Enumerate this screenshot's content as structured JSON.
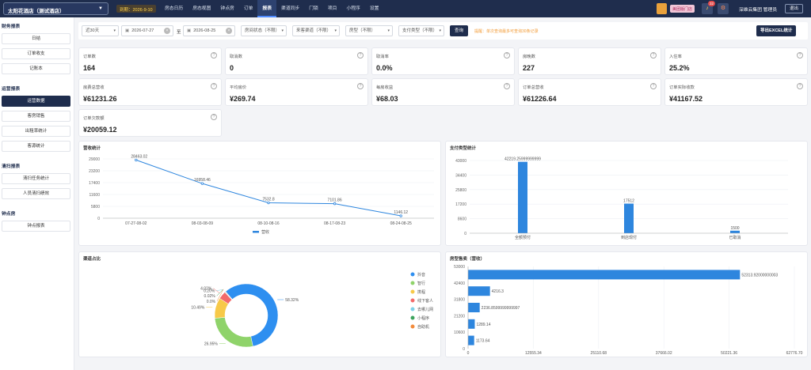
{
  "header": {
    "store": "太阳花酒店（测试酒店）",
    "expire": "到期：2026-9-10",
    "nav": [
      "房态日历",
      "房态视图",
      "钟点房",
      "订单",
      "报表",
      "渠道同步",
      "门锁",
      "项目",
      "小程序",
      "设置"
    ],
    "active_nav": "报表",
    "version": "美团版门店",
    "notice_count": "32",
    "user": "深维云集团 管理员",
    "logout": "退出"
  },
  "sidebar": {
    "groups": [
      {
        "title": "财务报表",
        "items": [
          "日结",
          "订单收支",
          "记账本"
        ]
      },
      {
        "title": "运营报表",
        "items": [
          "运营数据",
          "客房销售",
          "出租率统计",
          "客源统计"
        ]
      },
      {
        "title": "清扫报表",
        "items": [
          "清扫任务统计",
          "人员清扫绩效"
        ]
      },
      {
        "title": "钟点房",
        "items": [
          "钟点报表"
        ]
      }
    ],
    "active": "运营数据"
  },
  "filter": {
    "period": "近30天",
    "start_date": "2026-07-27",
    "sep": "至",
    "end_date": "2026-08-25",
    "order_status": "房间状态（不限）",
    "channel": "来客渠道（不限）",
    "room_type": "房型（不限）",
    "pay_type": "支付类型（不限）",
    "query": "查询",
    "hint": "提醒：单次查询最多可查询30条记录",
    "export": "导出EXCEL统计"
  },
  "kpis": [
    {
      "label": "订单数",
      "value": "164"
    },
    {
      "label": "取消数",
      "value": "0"
    },
    {
      "label": "取消率",
      "value": "0.0%"
    },
    {
      "label": "房晚数",
      "value": "227"
    },
    {
      "label": "入住率",
      "value": "25.2%"
    },
    {
      "label": "房费总营收",
      "value": "¥61231.26"
    },
    {
      "label": "平均房价",
      "value": "¥269.74"
    },
    {
      "label": "每房收益",
      "value": "¥68.03"
    },
    {
      "label": "订单总营收",
      "value": "¥61226.64"
    },
    {
      "label": "订单实际收款",
      "value": "¥41167.52"
    },
    {
      "label": "订单欠款额",
      "value": "¥20059.12"
    }
  ],
  "chart_data": [
    {
      "type": "line",
      "title": "营收统计",
      "categories": [
        "07-27-08-02",
        "08-03-08-09",
        "08-10-08-16",
        "08-17-08-23",
        "08-24-08-25"
      ],
      "series": [
        {
          "name": "营收",
          "values": [
            28463.02,
            16958.46,
            7532.8,
            7101.86,
            1146.12
          ]
        }
      ],
      "value_labels": [
        "28463.02",
        "16958.46",
        "7532.8",
        "7101.86",
        "1146.12"
      ],
      "yticks": [
        "29000",
        "23200",
        "17400",
        "11600",
        "5800",
        "0"
      ],
      "ylim": [
        0,
        29000
      ],
      "color": "#2e86de",
      "legend": "bottom"
    },
    {
      "type": "bar",
      "title": "支付类型统计",
      "categories": [
        "全额预付",
        "到店现付",
        "已取消"
      ],
      "values": [
        42219.25999999999,
        17512,
        1500
      ],
      "value_labels": [
        "42219.25999999999",
        "17512",
        "1500"
      ],
      "yticks": [
        "43000",
        "34400",
        "25800",
        "17200",
        "8600",
        "0"
      ],
      "ylim": [
        0,
        43000
      ],
      "color": "#2e86de"
    },
    {
      "type": "pie",
      "title": "渠道占比",
      "labels": [
        "抖音",
        "智行",
        "携程",
        "线下客人",
        "去哪儿网",
        "小程序",
        "自助机"
      ],
      "values": [
        58.32,
        26.95,
        10.49,
        4.02,
        0.2,
        0.02,
        0.0
      ],
      "label_texts": [
        "58.32%",
        "26.95%",
        "10.49%",
        "4.02%",
        "0.20%",
        "0.02%",
        "0.0%"
      ],
      "colors": [
        "#2e8ff0",
        "#8fd36a",
        "#f7c948",
        "#f36a6a",
        "#7fd1e8",
        "#3da35d",
        "#f28b3c"
      ],
      "legend": "right"
    },
    {
      "type": "bar",
      "orientation": "horizontal",
      "title": "房型售卖（营收）",
      "values": [
        52313.92000000003,
        4216.3,
        2236.8599999999997,
        1289.14,
        1173.64
      ],
      "value_labels": [
        "52313.92000000003",
        "4216.3",
        "2236.8599999999997",
        "1289.14",
        "1173.64"
      ],
      "yticks": [
        "53000",
        "42400",
        "31800",
        "21200",
        "10600",
        "0"
      ],
      "xticks": [
        "0",
        "12555.34",
        "25110.68",
        "37666.02",
        "50221.36",
        "62776.70"
      ],
      "xlim": [
        0,
        62776.7
      ],
      "color": "#2e86de"
    }
  ]
}
